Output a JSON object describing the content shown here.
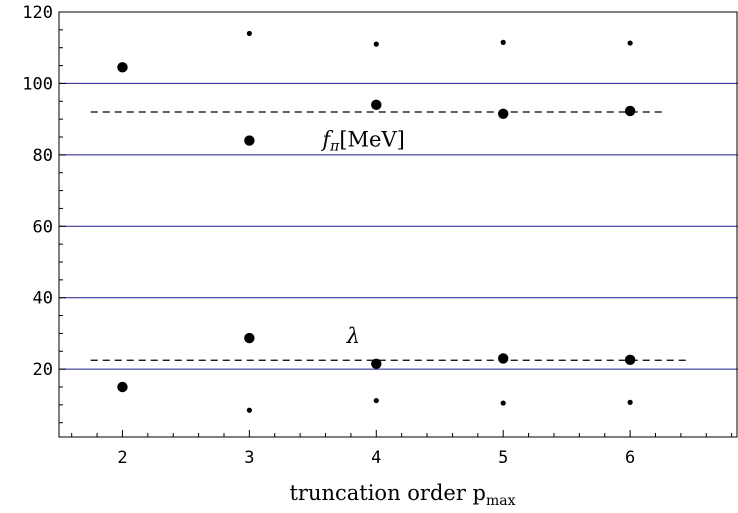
{
  "chart_data": {
    "type": "scatter",
    "title": "",
    "xlabel": "truncation order p",
    "xlabel_sub": "max",
    "ylabel": "",
    "x_ticks": [
      2,
      3,
      4,
      5,
      6
    ],
    "y_ticks": [
      20,
      40,
      60,
      80,
      100,
      120
    ],
    "xlim": [
      1.5,
      6.85
    ],
    "ylim": [
      1,
      120
    ],
    "grid": "horizontal lines at 20, 40, 60, 80, 100",
    "grid_color": "#1f1f8f",
    "series": [
      {
        "marker": "large",
        "x": [
          2,
          3,
          4,
          5,
          6
        ],
        "y": [
          104.5,
          84,
          94,
          91.5,
          92.3
        ]
      },
      {
        "marker": "small",
        "x": [
          3,
          4,
          5,
          6
        ],
        "y": [
          114,
          111,
          111.5,
          111.3
        ]
      },
      {
        "marker": "large",
        "x": [
          2,
          3,
          4,
          5,
          6
        ],
        "y": [
          15,
          28.7,
          21.5,
          23,
          22.6
        ]
      },
      {
        "marker": "small",
        "x": [
          3,
          4,
          5,
          6
        ],
        "y": [
          8.5,
          11.2,
          10.5,
          10.7
        ]
      }
    ],
    "reference_lines": [
      {
        "label_main": "f",
        "label_sub": "π",
        "label_rest": "[MeV]",
        "y": 92,
        "x_range": [
          1.75,
          6.25
        ],
        "label_x": 3.9,
        "label_y": 84
      },
      {
        "label_main": "λ",
        "y": 22.5,
        "x_range": [
          1.75,
          6.45
        ],
        "label_x": 3.82,
        "label_y": 29
      }
    ]
  }
}
